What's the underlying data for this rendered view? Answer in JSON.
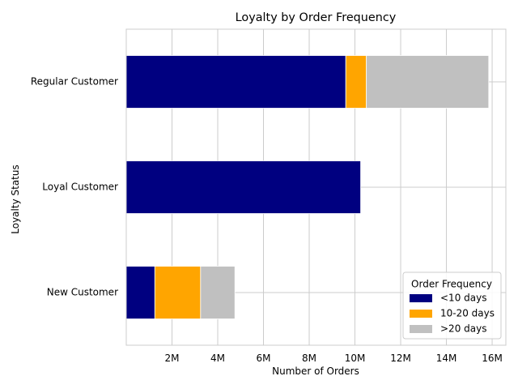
{
  "chart_data": {
    "type": "bar",
    "orientation": "horizontal",
    "stacked": true,
    "title": "Loyalty by Order Frequency",
    "xlabel": "Number of Orders",
    "ylabel": "Loyalty Status",
    "categories": [
      "New Customer",
      "Loyal Customer",
      "Regular Customer"
    ],
    "series": [
      {
        "name": "<10 days",
        "color": "#000080",
        "values": [
          1250000,
          10250000,
          9600000
        ]
      },
      {
        "name": "10-20 days",
        "color": "#FFA500",
        "values": [
          2000000,
          0,
          900000
        ]
      },
      {
        "name": ">20 days",
        "color": "#C0C0C0",
        "values": [
          1500000,
          0,
          5350000
        ]
      }
    ],
    "xlim": [
      0,
      16600000
    ],
    "xticks": [
      2000000,
      4000000,
      6000000,
      8000000,
      10000000,
      12000000,
      14000000,
      16000000
    ],
    "xtick_labels": [
      "2M",
      "4M",
      "6M",
      "8M",
      "10M",
      "12M",
      "14M",
      "16M"
    ],
    "grid": true,
    "legend": {
      "title": "Order Frequency",
      "placement": "lower-right"
    }
  }
}
